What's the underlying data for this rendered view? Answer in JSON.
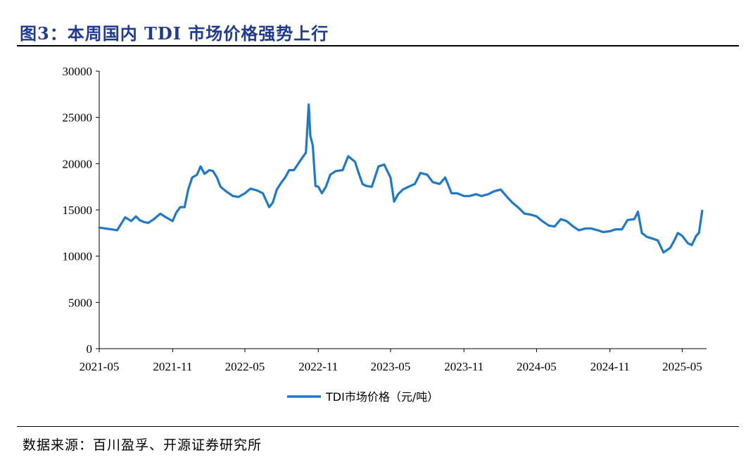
{
  "figure": {
    "title": "图3：本周国内 TDI 市场价格强势上行",
    "source": "数据来源：百川盈孚、开源证券研究所"
  },
  "colors": {
    "line": "#1f78c8",
    "title": "#1f3a93"
  },
  "chart_data": {
    "type": "line",
    "title": "",
    "xlabel": "",
    "ylabel": "",
    "ylim": [
      0,
      30000
    ],
    "yticks": [
      "0",
      "5000",
      "10000",
      "15000",
      "20000",
      "25000",
      "30000"
    ],
    "xlim": [
      "2021-05",
      "2025-07"
    ],
    "xticks": [
      "2021-05",
      "2021-11",
      "2022-05",
      "2022-11",
      "2023-05",
      "2023-11",
      "2024-05",
      "2024-11",
      "2025-05"
    ],
    "legend_position": "bottom",
    "grid": false,
    "series": [
      {
        "name": "TDI市场价格（元/吨）",
        "x": [
          "2021-05-01",
          "2021-05-15",
          "2021-06-01",
          "2021-06-15",
          "2021-06-25",
          "2021-07-05",
          "2021-07-20",
          "2021-08-01",
          "2021-08-10",
          "2021-08-20",
          "2021-09-01",
          "2021-09-15",
          "2021-10-01",
          "2021-10-15",
          "2021-11-01",
          "2021-11-10",
          "2021-11-20",
          "2021-12-01",
          "2021-12-10",
          "2021-12-20",
          "2022-01-01",
          "2022-01-10",
          "2022-01-20",
          "2022-02-01",
          "2022-02-10",
          "2022-02-20",
          "2022-03-01",
          "2022-03-15",
          "2022-04-01",
          "2022-04-15",
          "2022-05-01",
          "2022-05-15",
          "2022-06-01",
          "2022-06-15",
          "2022-07-01",
          "2022-07-10",
          "2022-07-20",
          "2022-08-01",
          "2022-08-10",
          "2022-08-20",
          "2022-09-01",
          "2022-09-15",
          "2022-10-01",
          "2022-10-08",
          "2022-10-12",
          "2022-10-18",
          "2022-10-25",
          "2022-11-01",
          "2022-11-10",
          "2022-11-20",
          "2022-12-01",
          "2022-12-15",
          "2023-01-01",
          "2023-01-15",
          "2023-02-01",
          "2023-02-10",
          "2023-02-20",
          "2023-03-01",
          "2023-03-15",
          "2023-04-01",
          "2023-04-15",
          "2023-05-01",
          "2023-05-10",
          "2023-05-20",
          "2023-06-01",
          "2023-06-15",
          "2023-07-01",
          "2023-07-15",
          "2023-08-01",
          "2023-08-15",
          "2023-09-01",
          "2023-09-15",
          "2023-10-01",
          "2023-10-15",
          "2023-11-01",
          "2023-11-15",
          "2023-12-01",
          "2023-12-15",
          "2024-01-01",
          "2024-01-15",
          "2024-02-01",
          "2024-02-15",
          "2024-03-01",
          "2024-03-15",
          "2024-04-01",
          "2024-04-15",
          "2024-05-01",
          "2024-05-15",
          "2024-06-01",
          "2024-06-15",
          "2024-07-01",
          "2024-07-15",
          "2024-08-01",
          "2024-08-15",
          "2024-09-01",
          "2024-09-15",
          "2024-10-01",
          "2024-10-15",
          "2024-11-01",
          "2024-11-15",
          "2024-12-01",
          "2024-12-15",
          "2025-01-01",
          "2025-01-10",
          "2025-01-20",
          "2025-02-01",
          "2025-02-15",
          "2025-03-01",
          "2025-03-15",
          "2025-04-01",
          "2025-04-10",
          "2025-04-20",
          "2025-05-01",
          "2025-05-15",
          "2025-05-25",
          "2025-06-05",
          "2025-06-12",
          "2025-06-20"
        ],
        "y": [
          13100,
          13000,
          12900,
          12800,
          13500,
          14200,
          13800,
          14300,
          13900,
          13700,
          13600,
          14000,
          14600,
          14200,
          13800,
          14700,
          15300,
          15300,
          17200,
          18500,
          18800,
          19700,
          18900,
          19300,
          19200,
          18500,
          17500,
          17000,
          16500,
          16400,
          16800,
          17300,
          17100,
          16800,
          15300,
          15800,
          17200,
          18000,
          18500,
          19300,
          19300,
          20200,
          21200,
          26400,
          23000,
          22000,
          17600,
          17500,
          16800,
          17500,
          18800,
          19200,
          19300,
          20800,
          20200,
          19000,
          17800,
          17600,
          17500,
          19700,
          19900,
          18500,
          15900,
          16700,
          17200,
          17500,
          17800,
          19000,
          18800,
          18000,
          17800,
          18500,
          16800,
          16800,
          16500,
          16500,
          16700,
          16500,
          16700,
          17000,
          17200,
          16500,
          15800,
          15300,
          14600,
          14500,
          14300,
          13800,
          13300,
          13200,
          14000,
          13800,
          13200,
          12800,
          13000,
          13000,
          12800,
          12600,
          12700,
          12900,
          12900,
          13900,
          14000,
          14800,
          12500,
          12100,
          11900,
          11700,
          10400,
          10900,
          11600,
          12500,
          12200,
          11400,
          11200,
          12200,
          12500,
          14900
        ]
      }
    ]
  }
}
